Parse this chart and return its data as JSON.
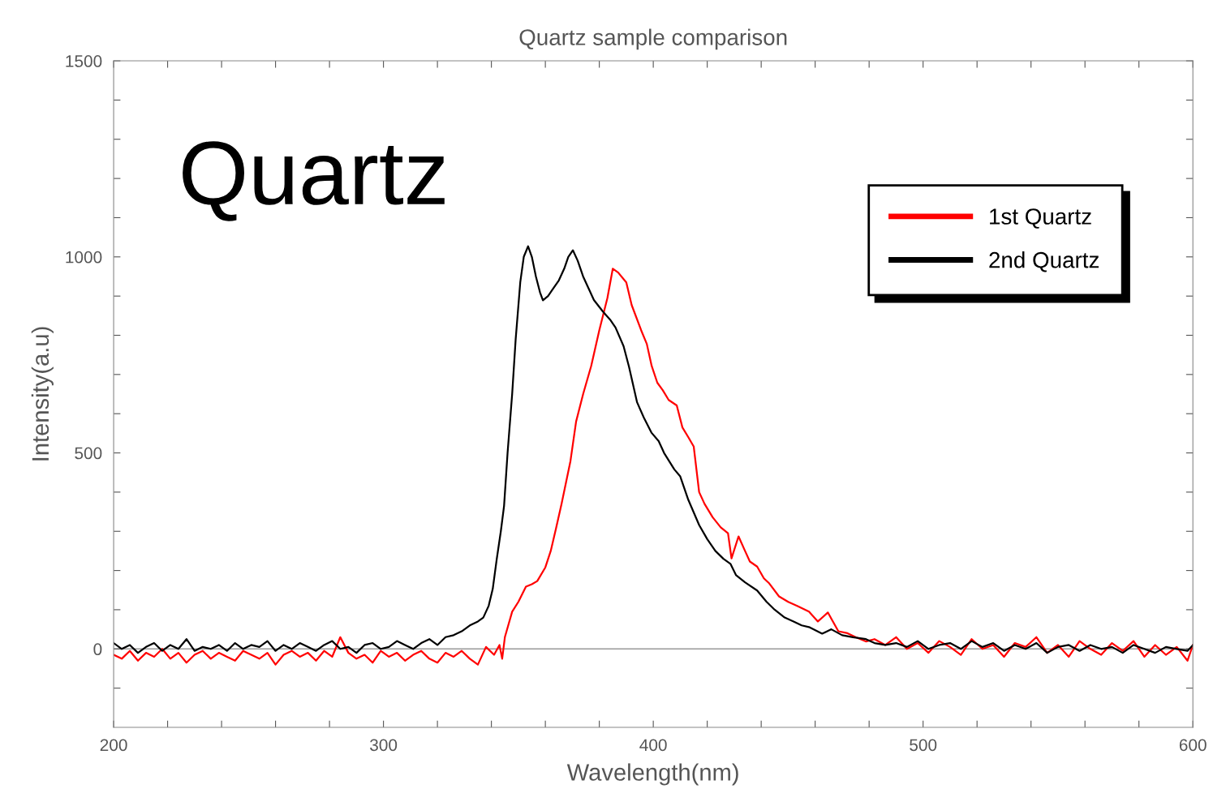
{
  "chart_data": {
    "type": "line",
    "title": "Quartz sample comparison",
    "xlabel": "Wavelength(nm)",
    "ylabel": "Intensity(a.u)",
    "annotations": [
      "Quartz"
    ],
    "xlim": [
      200,
      600
    ],
    "ylim": [
      -200,
      1500
    ],
    "xticks": [
      200,
      {
        "value": 220,
        "label": null
      },
      {
        "value": 240,
        "label": null
      },
      {
        "value": 260,
        "label": null
      },
      {
        "value": 280,
        "label": null
      },
      300,
      {
        "value": 320,
        "label": null
      },
      {
        "value": 340,
        "label": null
      },
      {
        "value": 360,
        "label": null
      },
      {
        "value": 380,
        "label": null
      },
      400,
      {
        "value": 420,
        "label": null
      },
      {
        "value": 440,
        "label": null
      },
      {
        "value": 460,
        "label": null
      },
      {
        "value": 480,
        "label": null
      },
      500,
      {
        "value": 520,
        "label": null
      },
      {
        "value": 540,
        "label": null
      },
      {
        "value": 560,
        "label": null
      },
      {
        "value": 580,
        "label": null
      },
      600
    ],
    "yticks": [
      {
        "value": -100,
        "label": null
      },
      0,
      {
        "value": 100,
        "label": null
      },
      {
        "value": 200,
        "label": null
      },
      {
        "value": 300,
        "label": null
      },
      {
        "value": 400,
        "label": null
      },
      500,
      {
        "value": 600,
        "label": null
      },
      {
        "value": 700,
        "label": null
      },
      {
        "value": 800,
        "label": null
      },
      {
        "value": 900,
        "label": null
      },
      1000,
      {
        "value": 1100,
        "label": null
      },
      {
        "value": 1200,
        "label": null
      },
      {
        "value": 1300,
        "label": null
      },
      {
        "value": 1400,
        "label": null
      },
      1500
    ],
    "grid": false,
    "legend": "top right",
    "marker": "none",
    "line_style": "solid",
    "ref_lines": [
      {
        "axis": "y",
        "value": 0,
        "color": "#999999"
      }
    ],
    "series": [
      {
        "name": "1st Quartz",
        "color": "#ff0000",
        "x": [
          200,
          203,
          206,
          209,
          212,
          215,
          218,
          221,
          224,
          227,
          230,
          233,
          236,
          239,
          242,
          245,
          248,
          251,
          254,
          257,
          260,
          263,
          266,
          269,
          272,
          275,
          278,
          281,
          284,
          287,
          290,
          293,
          296,
          299,
          302,
          305,
          308,
          311,
          314,
          317,
          320,
          323,
          326,
          329,
          332,
          335,
          338,
          341,
          343,
          344,
          345,
          347.7,
          350,
          352.8,
          355,
          357,
          360,
          362,
          364,
          366,
          369.3,
          371.4,
          374,
          377,
          380,
          383,
          385,
          387,
          390,
          392,
          395.5,
          397.6,
          399.4,
          401.5,
          403.5,
          405.7,
          408.7,
          410.8,
          413,
          415,
          417,
          419,
          422,
          425,
          427.7,
          429,
          431.6,
          434,
          435.8,
          438.5,
          441,
          443,
          446.6,
          450,
          453.5,
          457.7,
          461,
          464.7,
          468.6,
          472,
          475,
          478.8,
          482,
          486,
          490,
          494,
          498,
          502,
          506,
          510,
          514,
          518,
          522,
          526,
          530,
          534,
          538,
          542,
          546,
          550,
          554,
          558,
          562,
          566,
          570,
          574,
          578,
          582,
          586,
          590,
          594,
          598,
          600
        ],
        "values": [
          -15,
          -25,
          -5,
          -30,
          -10,
          -20,
          0,
          -25,
          -10,
          -35,
          -15,
          -5,
          -25,
          -10,
          -20,
          -30,
          -5,
          -15,
          -25,
          -10,
          -40,
          -15,
          -5,
          -20,
          -10,
          -30,
          -5,
          -20,
          30,
          -10,
          -25,
          -15,
          -35,
          -5,
          -20,
          -10,
          -30,
          -15,
          -5,
          -25,
          -35,
          -10,
          -20,
          -5,
          -25,
          -40,
          5,
          -15,
          10,
          -25,
          30,
          95,
          120,
          159,
          165,
          173,
          208,
          250,
          309,
          370,
          479,
          580,
          650,
          722,
          813,
          895,
          970,
          960,
          935,
          877,
          813,
          778,
          722,
          679,
          660,
          635,
          621,
          565,
          540,
          516,
          400,
          370,
          336,
          310,
          295,
          231,
          287,
          250,
          223,
          210,
          180,
          167,
          134,
          120,
          109,
          95,
          70,
          93,
          45,
          40,
          30,
          19,
          25,
          10,
          30,
          0,
          15,
          -10,
          20,
          5,
          -15,
          25,
          0,
          10,
          -20,
          15,
          5,
          30,
          -10,
          10,
          -20,
          20,
          0,
          -15,
          15,
          -5,
          20,
          -20,
          10,
          -15,
          5,
          -30,
          10
        ]
      },
      {
        "name": "2nd Quartz",
        "color": "#000000",
        "x": [
          200,
          203,
          206,
          209,
          212,
          215,
          218,
          221,
          224,
          227,
          230,
          233,
          236,
          239,
          242,
          245,
          248,
          251,
          254,
          257,
          260,
          263,
          266,
          269,
          272,
          275,
          278,
          281,
          284,
          287,
          290,
          293,
          296,
          299,
          302,
          305,
          308,
          311,
          314,
          317,
          320,
          323,
          326,
          329,
          332,
          335,
          337,
          339,
          340.5,
          342,
          343.5,
          344.7,
          346,
          347.7,
          349,
          350.7,
          352,
          353.6,
          355,
          356.5,
          358,
          359.1,
          361,
          363,
          365,
          367,
          368.5,
          370.2,
          372,
          374,
          376,
          378,
          381.4,
          384,
          386,
          389,
          391,
          394,
          396.5,
          399.4,
          402,
          404,
          407.8,
          410,
          413,
          417,
          420,
          423,
          426,
          428.6,
          430.7,
          434,
          438.5,
          442,
          445,
          448.7,
          452,
          455,
          458,
          462.6,
          466,
          470,
          474,
          478.8,
          482,
          486,
          490,
          494,
          498,
          502,
          506,
          510,
          514,
          518,
          522,
          526,
          530,
          534,
          538,
          542,
          546,
          550,
          554,
          558,
          562,
          566,
          570,
          574,
          578,
          582,
          586,
          590,
          594,
          598,
          600
        ],
        "values": [
          15,
          0,
          10,
          -10,
          5,
          15,
          -5,
          10,
          0,
          25,
          -5,
          5,
          0,
          10,
          -5,
          15,
          0,
          10,
          5,
          20,
          -5,
          10,
          0,
          15,
          5,
          -5,
          10,
          20,
          0,
          5,
          -10,
          10,
          15,
          0,
          5,
          20,
          10,
          0,
          15,
          25,
          10,
          30,
          35,
          45,
          60,
          70,
          80,
          110,
          153,
          230,
          300,
          365,
          500,
          650,
          790,
          935,
          1000,
          1027,
          1000,
          950,
          910,
          889,
          900,
          920,
          940,
          970,
          1000,
          1017,
          990,
          950,
          920,
          890,
          860,
          840,
          820,
          772,
          720,
          629,
          590,
          551,
          530,
          500,
          458,
          440,
          380,
          316,
          280,
          250,
          230,
          217,
          188,
          170,
          149,
          120,
          100,
          80,
          70,
          60,
          55,
          39,
          50,
          35,
          30,
          25,
          15,
          10,
          15,
          5,
          20,
          0,
          10,
          15,
          0,
          20,
          5,
          15,
          -5,
          10,
          0,
          15,
          -10,
          5,
          10,
          -5,
          10,
          0,
          5,
          -10,
          10,
          0,
          -10,
          5,
          0,
          -5,
          10
        ]
      }
    ]
  }
}
